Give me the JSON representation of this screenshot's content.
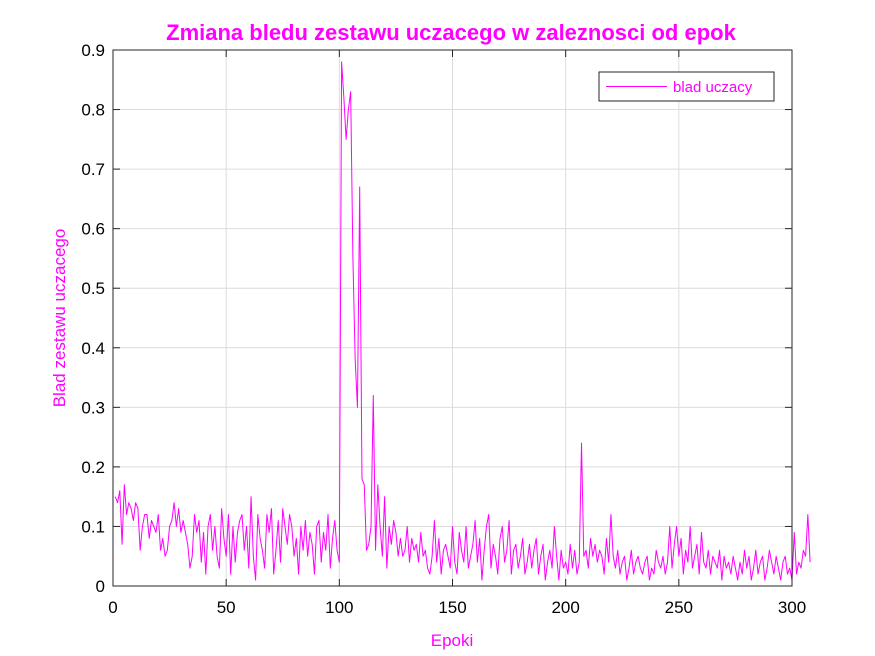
{
  "chart_data": {
    "type": "line",
    "title": "Zmiana bledu zestawu uczacego w zaleznosci od epok",
    "xlabel": "Epoki",
    "ylabel": "Blad zestawu uczacego",
    "xlim": [
      0,
      300
    ],
    "ylim": [
      0,
      0.9
    ],
    "x_ticks": [
      "0",
      "50",
      "100",
      "150",
      "200",
      "250",
      "300"
    ],
    "y_ticks": [
      "0",
      "0.1",
      "0.2",
      "0.3",
      "0.4",
      "0.5",
      "0.6",
      "0.7",
      "0.8",
      "0.9"
    ],
    "grid": true,
    "legend_position": "top-right",
    "colors": {
      "accent": "#ff00ff",
      "axis": "#262626",
      "grid": "#dcdcdc"
    },
    "series": [
      {
        "name": "blad uczacy",
        "x_start": 1,
        "x_step": 1,
        "values": [
          0.15,
          0.14,
          0.16,
          0.07,
          0.17,
          0.12,
          0.14,
          0.13,
          0.11,
          0.14,
          0.13,
          0.06,
          0.1,
          0.12,
          0.12,
          0.08,
          0.11,
          0.1,
          0.09,
          0.12,
          0.06,
          0.08,
          0.05,
          0.06,
          0.1,
          0.11,
          0.14,
          0.1,
          0.13,
          0.09,
          0.11,
          0.09,
          0.07,
          0.03,
          0.05,
          0.12,
          0.09,
          0.11,
          0.04,
          0.09,
          0.02,
          0.1,
          0.12,
          0.06,
          0.1,
          0.05,
          0.03,
          0.13,
          0.08,
          0.05,
          0.12,
          0.02,
          0.1,
          0.04,
          0.09,
          0.11,
          0.12,
          0.06,
          0.1,
          0.03,
          0.15,
          0.05,
          0.01,
          0.12,
          0.08,
          0.06,
          0.03,
          0.12,
          0.09,
          0.13,
          0.02,
          0.06,
          0.11,
          0.04,
          0.13,
          0.1,
          0.07,
          0.12,
          0.1,
          0.05,
          0.08,
          0.02,
          0.1,
          0.06,
          0.11,
          0.05,
          0.09,
          0.07,
          0.02,
          0.1,
          0.11,
          0.04,
          0.09,
          0.06,
          0.12,
          0.03,
          0.08,
          0.11,
          0.06,
          0.04,
          0.88,
          0.82,
          0.75,
          0.8,
          0.83,
          0.55,
          0.38,
          0.3,
          0.67,
          0.18,
          0.17,
          0.06,
          0.07,
          0.1,
          0.32,
          0.06,
          0.17,
          0.1,
          0.05,
          0.15,
          0.03,
          0.1,
          0.07,
          0.11,
          0.09,
          0.05,
          0.08,
          0.05,
          0.06,
          0.1,
          0.04,
          0.08,
          0.06,
          0.07,
          0.04,
          0.09,
          0.05,
          0.06,
          0.03,
          0.02,
          0.05,
          0.11,
          0.04,
          0.08,
          0.02,
          0.06,
          0.07,
          0.05,
          0.03,
          0.1,
          0.04,
          0.02,
          0.09,
          0.06,
          0.04,
          0.1,
          0.03,
          0.05,
          0.07,
          0.11,
          0.04,
          0.08,
          0.01,
          0.06,
          0.1,
          0.12,
          0.03,
          0.07,
          0.05,
          0.02,
          0.08,
          0.1,
          0.04,
          0.06,
          0.11,
          0.02,
          0.06,
          0.07,
          0.03,
          0.05,
          0.08,
          0.02,
          0.04,
          0.07,
          0.03,
          0.06,
          0.08,
          0.02,
          0.05,
          0.07,
          0.01,
          0.04,
          0.06,
          0.03,
          0.1,
          0.05,
          0.01,
          0.06,
          0.03,
          0.04,
          0.02,
          0.07,
          0.03,
          0.06,
          0.02,
          0.04,
          0.24,
          0.05,
          0.06,
          0.03,
          0.08,
          0.05,
          0.07,
          0.04,
          0.06,
          0.05,
          0.02,
          0.08,
          0.04,
          0.12,
          0.05,
          0.03,
          0.06,
          0.02,
          0.04,
          0.05,
          0.01,
          0.03,
          0.06,
          0.02,
          0.04,
          0.05,
          0.03,
          0.02,
          0.04,
          0.05,
          0.01,
          0.03,
          0.02,
          0.06,
          0.04,
          0.03,
          0.05,
          0.02,
          0.04,
          0.1,
          0.03,
          0.07,
          0.1,
          0.05,
          0.08,
          0.02,
          0.06,
          0.04,
          0.1,
          0.03,
          0.05,
          0.07,
          0.02,
          0.09,
          0.04,
          0.03,
          0.06,
          0.02,
          0.05,
          0.04,
          0.03,
          0.06,
          0.01,
          0.05,
          0.03,
          0.04,
          0.02,
          0.05,
          0.03,
          0.01,
          0.04,
          0.02,
          0.06,
          0.03,
          0.05,
          0.01,
          0.03,
          0.06,
          0.02,
          0.04,
          0.05,
          0.01,
          0.03,
          0.06,
          0.04,
          0.02,
          0.05,
          0.03,
          0.01,
          0.04,
          0.05,
          0.02,
          0.03,
          0.01,
          0.09,
          0.02,
          0.04,
          0.03,
          0.06,
          0.05,
          0.12,
          0.04
        ]
      }
    ]
  }
}
